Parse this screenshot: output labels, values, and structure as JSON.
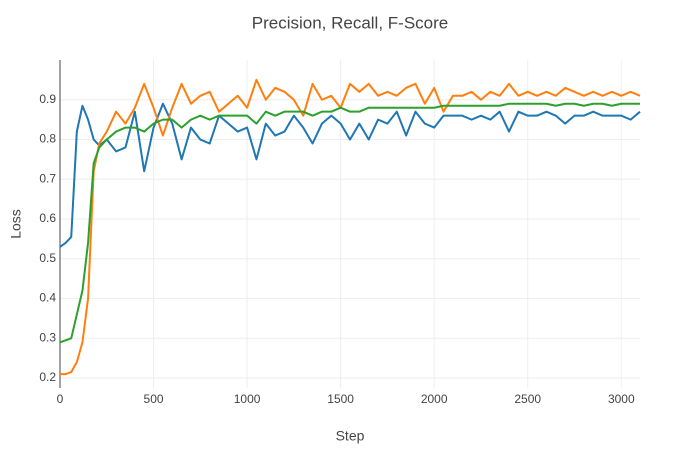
{
  "chart_data": {
    "type": "line",
    "title": "Precision, Recall, F-Score",
    "x_label": "Step",
    "y_label": "Loss",
    "x": [
      0,
      30,
      60,
      90,
      120,
      150,
      180,
      210,
      250,
      300,
      350,
      400,
      450,
      500,
      550,
      600,
      650,
      700,
      750,
      800,
      850,
      900,
      950,
      1000,
      1050,
      1100,
      1150,
      1200,
      1250,
      1300,
      1350,
      1400,
      1450,
      1500,
      1550,
      1600,
      1650,
      1700,
      1750,
      1800,
      1850,
      1900,
      1950,
      2000,
      2050,
      2100,
      2150,
      2200,
      2250,
      2300,
      2350,
      2400,
      2450,
      2500,
      2550,
      2600,
      2650,
      2700,
      2750,
      2800,
      2850,
      2900,
      2950,
      3000,
      3050,
      3100
    ],
    "series": [
      {
        "color": "#1f77b4",
        "values": [
          0.53,
          0.54,
          0.555,
          0.82,
          0.885,
          0.85,
          0.8,
          0.785,
          0.8,
          0.77,
          0.78,
          0.87,
          0.72,
          0.83,
          0.89,
          0.84,
          0.75,
          0.83,
          0.8,
          0.79,
          0.86,
          0.84,
          0.82,
          0.83,
          0.75,
          0.84,
          0.81,
          0.82,
          0.86,
          0.83,
          0.79,
          0.84,
          0.86,
          0.84,
          0.8,
          0.84,
          0.8,
          0.85,
          0.84,
          0.87,
          0.81,
          0.87,
          0.84,
          0.83,
          0.86,
          0.86,
          0.86,
          0.85,
          0.86,
          0.85,
          0.87,
          0.82,
          0.87,
          0.86,
          0.86,
          0.87,
          0.86,
          0.84,
          0.86,
          0.86,
          0.87,
          0.86,
          0.86,
          0.86,
          0.85,
          0.87
        ]
      },
      {
        "color": "#ff7f0e",
        "values": [
          0.21,
          0.21,
          0.215,
          0.24,
          0.29,
          0.4,
          0.72,
          0.79,
          0.82,
          0.87,
          0.84,
          0.88,
          0.94,
          0.88,
          0.81,
          0.88,
          0.94,
          0.89,
          0.91,
          0.92,
          0.87,
          0.89,
          0.91,
          0.88,
          0.95,
          0.9,
          0.93,
          0.92,
          0.9,
          0.86,
          0.94,
          0.9,
          0.91,
          0.88,
          0.94,
          0.92,
          0.94,
          0.91,
          0.92,
          0.91,
          0.93,
          0.94,
          0.89,
          0.93,
          0.87,
          0.91,
          0.91,
          0.92,
          0.9,
          0.92,
          0.91,
          0.94,
          0.91,
          0.92,
          0.91,
          0.92,
          0.91,
          0.93,
          0.92,
          0.91,
          0.92,
          0.91,
          0.92,
          0.91,
          0.92,
          0.91
        ]
      },
      {
        "color": "#2ca02c",
        "values": [
          0.29,
          0.295,
          0.3,
          0.36,
          0.42,
          0.54,
          0.74,
          0.78,
          0.8,
          0.82,
          0.83,
          0.83,
          0.82,
          0.84,
          0.85,
          0.85,
          0.83,
          0.85,
          0.86,
          0.85,
          0.86,
          0.86,
          0.86,
          0.86,
          0.84,
          0.87,
          0.86,
          0.87,
          0.87,
          0.87,
          0.86,
          0.87,
          0.87,
          0.88,
          0.87,
          0.87,
          0.88,
          0.88,
          0.88,
          0.88,
          0.88,
          0.88,
          0.88,
          0.88,
          0.885,
          0.885,
          0.885,
          0.885,
          0.885,
          0.885,
          0.885,
          0.89,
          0.89,
          0.89,
          0.89,
          0.89,
          0.885,
          0.89,
          0.89,
          0.885,
          0.89,
          0.89,
          0.885,
          0.89,
          0.89,
          0.89
        ]
      }
    ],
    "xlim": [
      0,
      3100
    ],
    "xticks": [
      0,
      500,
      1000,
      1500,
      2000,
      2500,
      3000
    ],
    "ylim": [
      0.175,
      1.0
    ],
    "yticks": [
      0.2,
      0.3,
      0.4,
      0.5,
      0.6,
      0.7,
      0.8,
      0.9
    ],
    "grid": true
  }
}
